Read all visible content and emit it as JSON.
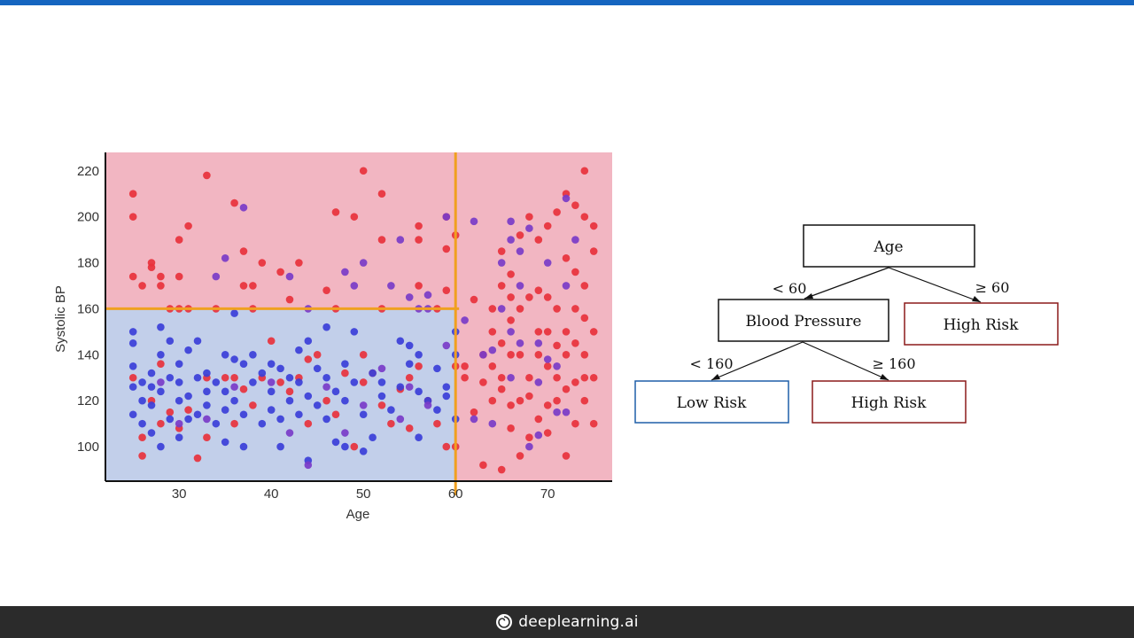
{
  "chart_data": {
    "type": "scatter",
    "title": "",
    "xlabel": "Age",
    "ylabel": "Systolic BP",
    "xlim": [
      22,
      77
    ],
    "ylim": [
      85,
      228
    ],
    "x_ticks": [
      30,
      40,
      50,
      60,
      70
    ],
    "y_ticks": [
      100,
      120,
      140,
      160,
      180,
      200,
      220
    ],
    "grid": false,
    "regions": [
      {
        "name": "high-risk-region",
        "color": "#f2b6c2"
      },
      {
        "name": "low-risk-region",
        "color": "#c2cfea",
        "x_max": 60,
        "y_max": 160
      }
    ],
    "split_lines": [
      {
        "axis": "x",
        "value": 60,
        "color": "#f0a020"
      },
      {
        "axis": "y",
        "value": 160,
        "x_max": 60,
        "color": "#f0a020"
      }
    ],
    "colors": {
      "red": "#e8323c",
      "blue": "#3b3fd8",
      "purple": "#7a3cc8"
    },
    "series": [
      {
        "color": "red",
        "points": [
          [
            25,
            210
          ],
          [
            25,
            200
          ],
          [
            25,
            174
          ],
          [
            26,
            170
          ],
          [
            27,
            180
          ],
          [
            27,
            178
          ],
          [
            28,
            174
          ],
          [
            28,
            170
          ],
          [
            30,
            190
          ],
          [
            31,
            196
          ],
          [
            30,
            174
          ],
          [
            33,
            218
          ],
          [
            36,
            206
          ],
          [
            37,
            185
          ],
          [
            37,
            170
          ],
          [
            38,
            170
          ],
          [
            39,
            180
          ],
          [
            41,
            176
          ],
          [
            43,
            180
          ],
          [
            47,
            202
          ],
          [
            49,
            200
          ],
          [
            50,
            220
          ],
          [
            52,
            210
          ],
          [
            52,
            190
          ],
          [
            56,
            196
          ],
          [
            56,
            190
          ],
          [
            59,
            200
          ],
          [
            59,
            186
          ],
          [
            60,
            192
          ],
          [
            34,
            160
          ],
          [
            31,
            160
          ],
          [
            30,
            160
          ],
          [
            29,
            160
          ],
          [
            38,
            160
          ],
          [
            42,
            164
          ],
          [
            46,
            168
          ],
          [
            47,
            160
          ],
          [
            52,
            160
          ],
          [
            56,
            170
          ],
          [
            58,
            160
          ],
          [
            59,
            168
          ],
          [
            25,
            130
          ],
          [
            26,
            104
          ],
          [
            26,
            96
          ],
          [
            27,
            120
          ],
          [
            28,
            110
          ],
          [
            29,
            115
          ],
          [
            30,
            108
          ],
          [
            31,
            116
          ],
          [
            32,
            95
          ],
          [
            33,
            104
          ],
          [
            35,
            130
          ],
          [
            36,
            110
          ],
          [
            37,
            125
          ],
          [
            38,
            118
          ],
          [
            39,
            130
          ],
          [
            40,
            146
          ],
          [
            41,
            128
          ],
          [
            42,
            124
          ],
          [
            43,
            130
          ],
          [
            44,
            110
          ],
          [
            45,
            140
          ],
          [
            46,
            120
          ],
          [
            47,
            114
          ],
          [
            48,
            132
          ],
          [
            49,
            100
          ],
          [
            50,
            140
          ],
          [
            51,
            132
          ],
          [
            52,
            118
          ],
          [
            53,
            110
          ],
          [
            54,
            125
          ],
          [
            55,
            108
          ],
          [
            56,
            135
          ],
          [
            57,
            120
          ],
          [
            58,
            110
          ],
          [
            59,
            100
          ],
          [
            60,
            100
          ],
          [
            60,
            135
          ],
          [
            28,
            136
          ],
          [
            33,
            130
          ],
          [
            36,
            130
          ],
          [
            44,
            138
          ],
          [
            50,
            128
          ],
          [
            55,
            130
          ],
          [
            61,
            135
          ],
          [
            62,
            164
          ],
          [
            63,
            140
          ],
          [
            63,
            92
          ],
          [
            65,
            90
          ],
          [
            64,
            120
          ],
          [
            65,
            185
          ],
          [
            65,
            170
          ],
          [
            66,
            175
          ],
          [
            67,
            192
          ],
          [
            68,
            200
          ],
          [
            69,
            190
          ],
          [
            70,
            196
          ],
          [
            71,
            202
          ],
          [
            72,
            210
          ],
          [
            73,
            205
          ],
          [
            74,
            220
          ],
          [
            74,
            200
          ],
          [
            72,
            182
          ],
          [
            73,
            176
          ],
          [
            74,
            170
          ],
          [
            69,
            168
          ],
          [
            70,
            165
          ],
          [
            71,
            160
          ],
          [
            72,
            150
          ],
          [
            73,
            145
          ],
          [
            74,
            140
          ],
          [
            75,
            150
          ],
          [
            75,
            130
          ],
          [
            74,
            120
          ],
          [
            73,
            110
          ],
          [
            72,
            96
          ],
          [
            70,
            106
          ],
          [
            69,
            112
          ],
          [
            68,
            104
          ],
          [
            67,
            96
          ],
          [
            66,
            118
          ],
          [
            65,
            125
          ],
          [
            64,
            135
          ],
          [
            63,
            128
          ],
          [
            62,
            115
          ],
          [
            61,
            130
          ],
          [
            66,
            108
          ],
          [
            67,
            120
          ],
          [
            68,
            130
          ],
          [
            69,
            140
          ],
          [
            70,
            150
          ],
          [
            71,
            130
          ],
          [
            72,
            125
          ],
          [
            75,
            185
          ],
          [
            75,
            196
          ],
          [
            64,
            160
          ],
          [
            64,
            150
          ],
          [
            65,
            145
          ],
          [
            66,
            155
          ],
          [
            67,
            140
          ],
          [
            68,
            165
          ],
          [
            69,
            150
          ],
          [
            70,
            135
          ],
          [
            71,
            120
          ],
          [
            72,
            140
          ],
          [
            73,
            160
          ],
          [
            74,
            130
          ],
          [
            75,
            110
          ],
          [
            66,
            165
          ],
          [
            67,
            160
          ],
          [
            65,
            130
          ],
          [
            66,
            140
          ],
          [
            68,
            122
          ],
          [
            70,
            118
          ],
          [
            71,
            144
          ],
          [
            73,
            128
          ],
          [
            74,
            156
          ]
        ]
      },
      {
        "color": "blue",
        "points": [
          [
            25,
            150
          ],
          [
            25,
            145
          ],
          [
            25,
            135
          ],
          [
            25,
            126
          ],
          [
            25,
            114
          ],
          [
            26,
            128
          ],
          [
            26,
            120
          ],
          [
            26,
            110
          ],
          [
            27,
            132
          ],
          [
            27,
            126
          ],
          [
            27,
            118
          ],
          [
            27,
            106
          ],
          [
            28,
            152
          ],
          [
            28,
            140
          ],
          [
            28,
            124
          ],
          [
            28,
            100
          ],
          [
            29,
            146
          ],
          [
            29,
            130
          ],
          [
            29,
            112
          ],
          [
            30,
            136
          ],
          [
            30,
            128
          ],
          [
            30,
            120
          ],
          [
            30,
            104
          ],
          [
            31,
            142
          ],
          [
            31,
            122
          ],
          [
            31,
            112
          ],
          [
            32,
            146
          ],
          [
            32,
            130
          ],
          [
            32,
            114
          ],
          [
            33,
            132
          ],
          [
            33,
            124
          ],
          [
            33,
            118
          ],
          [
            34,
            128
          ],
          [
            34,
            110
          ],
          [
            35,
            140
          ],
          [
            35,
            124
          ],
          [
            35,
            116
          ],
          [
            35,
            102
          ],
          [
            36,
            158
          ],
          [
            36,
            138
          ],
          [
            36,
            120
          ],
          [
            37,
            136
          ],
          [
            37,
            114
          ],
          [
            37,
            100
          ],
          [
            38,
            140
          ],
          [
            38,
            128
          ],
          [
            39,
            132
          ],
          [
            39,
            110
          ],
          [
            40,
            136
          ],
          [
            40,
            124
          ],
          [
            40,
            116
          ],
          [
            41,
            134
          ],
          [
            41,
            112
          ],
          [
            41,
            100
          ],
          [
            42,
            130
          ],
          [
            42,
            120
          ],
          [
            43,
            142
          ],
          [
            43,
            128
          ],
          [
            43,
            114
          ],
          [
            44,
            146
          ],
          [
            44,
            122
          ],
          [
            44,
            94
          ],
          [
            45,
            134
          ],
          [
            45,
            118
          ],
          [
            46,
            152
          ],
          [
            46,
            130
          ],
          [
            46,
            112
          ],
          [
            47,
            124
          ],
          [
            47,
            102
          ],
          [
            48,
            136
          ],
          [
            48,
            120
          ],
          [
            48,
            100
          ],
          [
            49,
            150
          ],
          [
            49,
            128
          ],
          [
            50,
            114
          ],
          [
            50,
            98
          ],
          [
            51,
            132
          ],
          [
            51,
            104
          ],
          [
            52,
            128
          ],
          [
            52,
            122
          ],
          [
            53,
            116
          ],
          [
            54,
            146
          ],
          [
            54,
            126
          ],
          [
            55,
            136
          ],
          [
            55,
            144
          ],
          [
            56,
            140
          ],
          [
            56,
            124
          ],
          [
            56,
            104
          ],
          [
            57,
            120
          ],
          [
            58,
            116
          ],
          [
            58,
            134
          ],
          [
            59,
            122
          ],
          [
            59,
            126
          ],
          [
            60,
            150
          ],
          [
            60,
            112
          ],
          [
            60,
            140
          ]
        ]
      },
      {
        "color": "purple",
        "points": [
          [
            37,
            204
          ],
          [
            35,
            182
          ],
          [
            34,
            174
          ],
          [
            42,
            174
          ],
          [
            48,
            176
          ],
          [
            49,
            170
          ],
          [
            50,
            180
          ],
          [
            54,
            190
          ],
          [
            55,
            165
          ],
          [
            57,
            166
          ],
          [
            59,
            200
          ],
          [
            62,
            198
          ],
          [
            66,
            198
          ],
          [
            66,
            190
          ],
          [
            65,
            180
          ],
          [
            67,
            185
          ],
          [
            68,
            195
          ],
          [
            72,
            208
          ],
          [
            61,
            155
          ],
          [
            62,
            112
          ],
          [
            64,
            142
          ],
          [
            66,
            150
          ],
          [
            69,
            145
          ],
          [
            70,
            138
          ],
          [
            68,
            100
          ],
          [
            69,
            105
          ],
          [
            71,
            115
          ],
          [
            53,
            170
          ],
          [
            56,
            160
          ],
          [
            57,
            160
          ],
          [
            44,
            160
          ],
          [
            28,
            128
          ],
          [
            30,
            110
          ],
          [
            33,
            112
          ],
          [
            36,
            126
          ],
          [
            40,
            128
          ],
          [
            42,
            106
          ],
          [
            44,
            92
          ],
          [
            46,
            126
          ],
          [
            48,
            106
          ],
          [
            50,
            118
          ],
          [
            52,
            134
          ],
          [
            54,
            112
          ],
          [
            55,
            126
          ],
          [
            57,
            118
          ],
          [
            59,
            144
          ],
          [
            67,
            170
          ],
          [
            70,
            180
          ],
          [
            72,
            170
          ],
          [
            73,
            190
          ],
          [
            63,
            140
          ],
          [
            65,
            160
          ],
          [
            66,
            130
          ],
          [
            67,
            145
          ],
          [
            69,
            128
          ],
          [
            71,
            135
          ],
          [
            72,
            115
          ],
          [
            64,
            110
          ]
        ]
      }
    ]
  },
  "tree": {
    "root": "Age",
    "left_edge": "< 60",
    "right_edge": "≥ 60",
    "bp_node": "Blood Pressure",
    "right_leaf": "High Risk",
    "bp_left_edge": "< 160",
    "bp_right_edge": "≥ 160",
    "leaf_low": "Low Risk",
    "leaf_high": "High Risk",
    "colors": {
      "node_border": "#111111",
      "low_border": "#1f5fa8",
      "high_border": "#8b1a1a"
    }
  },
  "footer": {
    "brand": "deeplearning.ai",
    "logo_icon": "spiral-logo-icon"
  }
}
